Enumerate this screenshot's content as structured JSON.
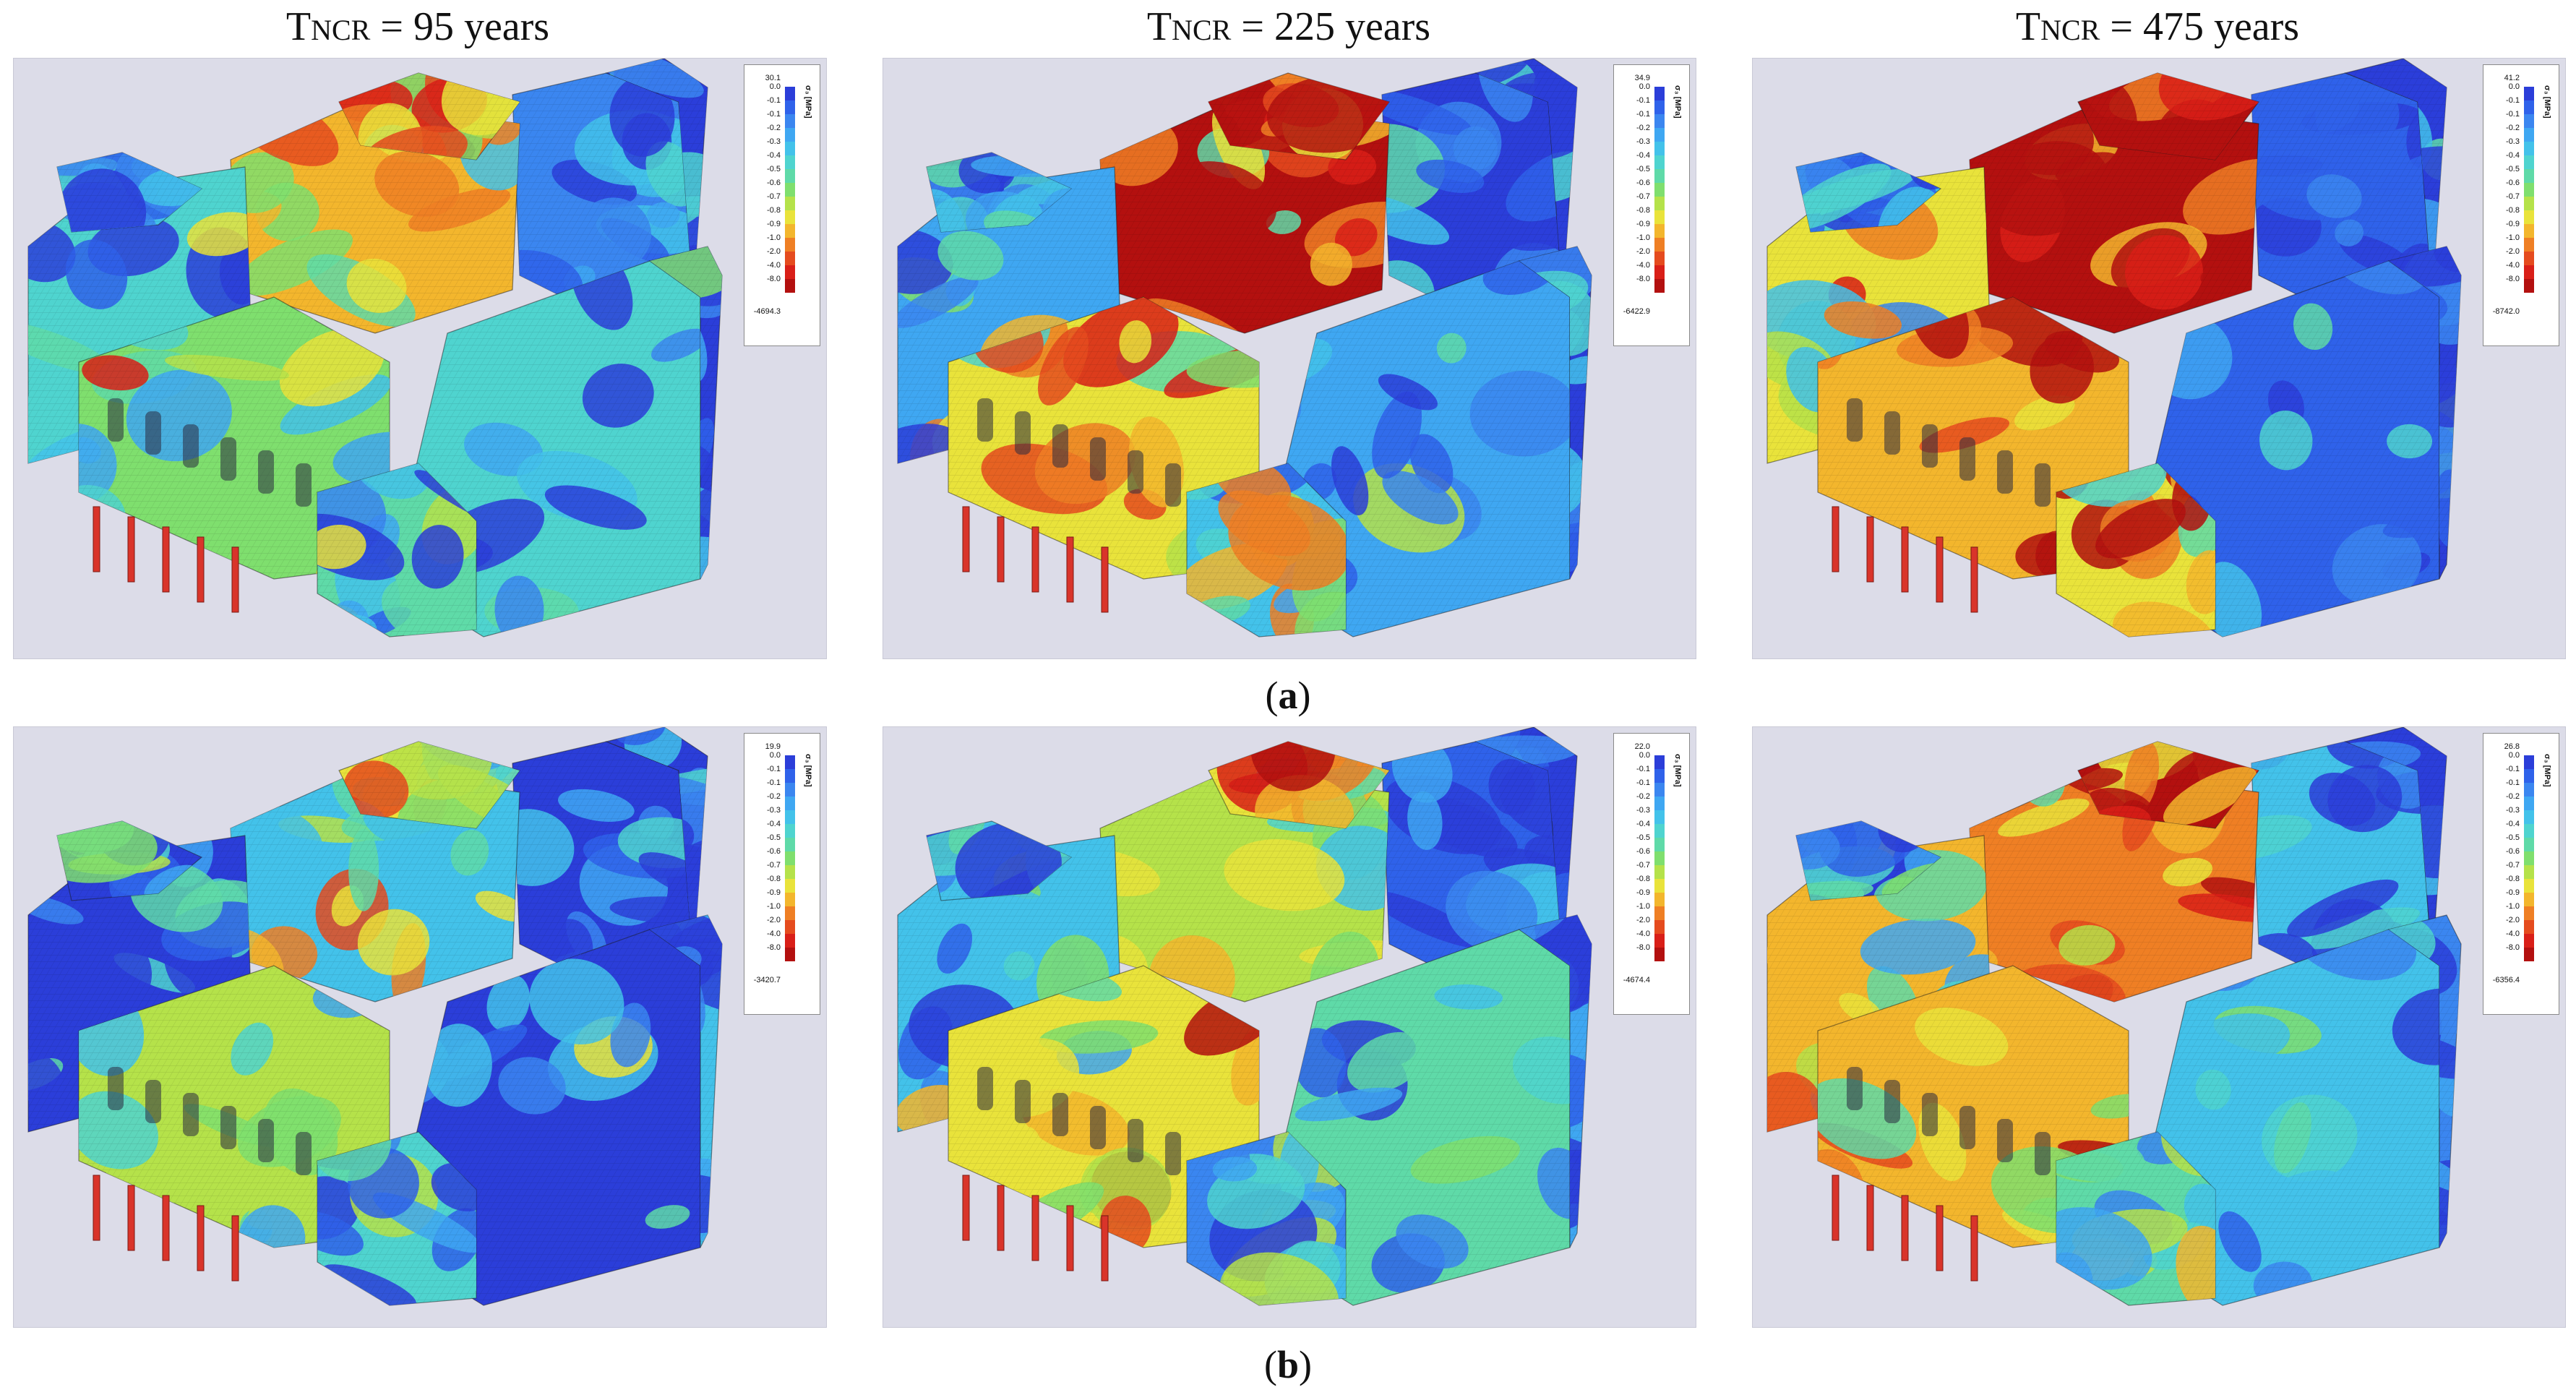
{
  "columns": [
    {
      "t": "T",
      "sub": "NCR",
      "rest": " = 95 years"
    },
    {
      "t": "T",
      "sub": "NCR",
      "rest": " = 225 years"
    },
    {
      "t": "T",
      "sub": "NCR",
      "rest": " = 475 years"
    }
  ],
  "rows": [
    {
      "label_open": "(",
      "label_letter": "a",
      "label_close": ")"
    },
    {
      "label_open": "(",
      "label_letter": "b",
      "label_close": ")"
    }
  ],
  "legend": {
    "unit": "σ₃ [MPa]",
    "ticks": [
      "0.0",
      "-0.1",
      "-0.1",
      "-0.2",
      "-0.3",
      "-0.4",
      "-0.5",
      "-0.6",
      "-0.7",
      "-0.8",
      "-0.9",
      "-1.0",
      "-2.0",
      "-4.0",
      "-8.0"
    ],
    "colors": [
      "#2b3ed9",
      "#2f62ea",
      "#3b86f0",
      "#3fa7f2",
      "#43c2ea",
      "#4fd4cf",
      "#5fdaa8",
      "#7fdf6e",
      "#b5e24a",
      "#e9e33b",
      "#f3b62d",
      "#ef7f24",
      "#e54b1e",
      "#d91f18",
      "#b3100f"
    ]
  },
  "panels": [
    {
      "max": "30.1",
      "min": "-4694.3"
    },
    {
      "max": "34.9",
      "min": "-6422.9"
    },
    {
      "max": "41.2",
      "min": "-8742.0"
    },
    {
      "max": "19.9",
      "min": "-3420.7"
    },
    {
      "max": "22.0",
      "min": "-4674.4"
    },
    {
      "max": "26.8",
      "min": "-6356.4"
    }
  ]
}
